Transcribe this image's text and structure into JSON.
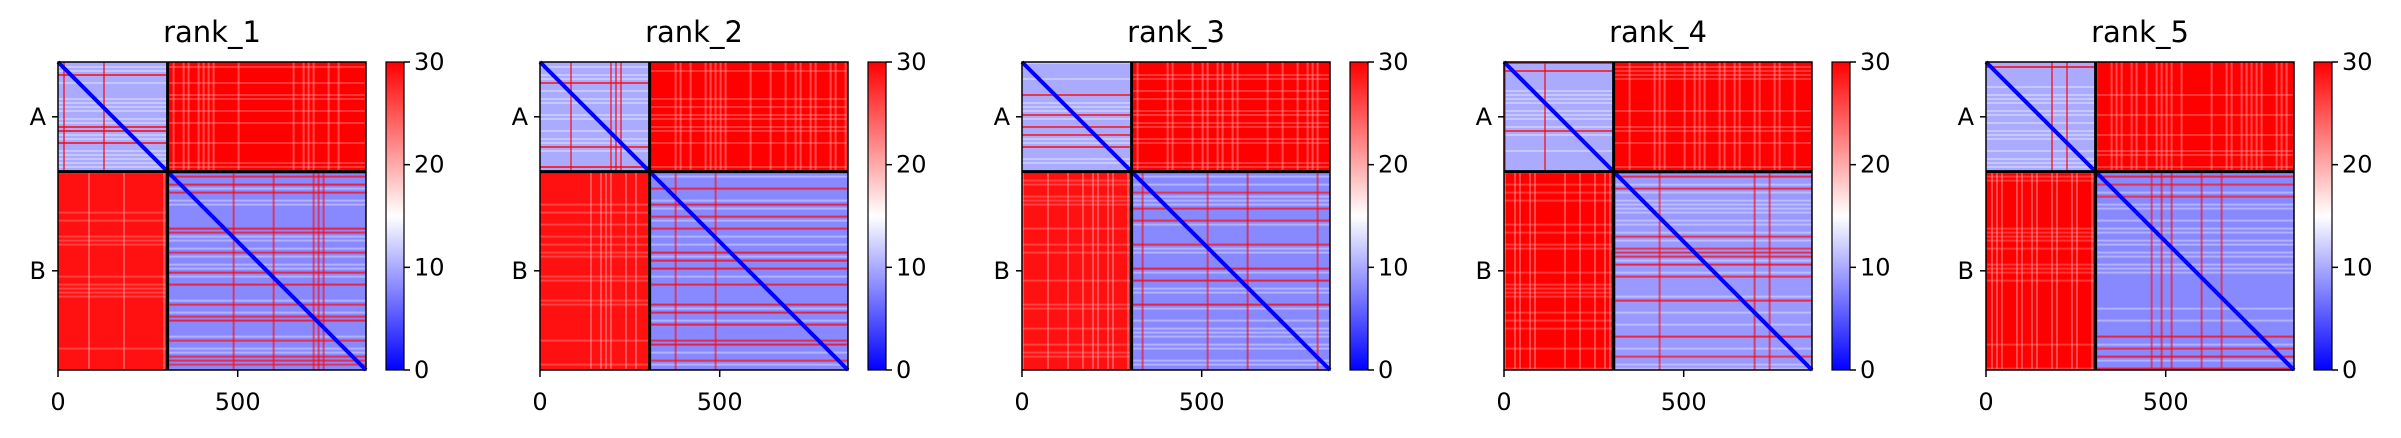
{
  "chart_data": [
    {
      "type": "heatmap",
      "title": "rank_1",
      "x_ticks": [
        0,
        500
      ],
      "y_tick_labels": [
        "A",
        "B"
      ],
      "chains": [
        {
          "name": "A",
          "start": 0,
          "end": 305
        },
        {
          "name": "B",
          "start": 305,
          "end": 857
        }
      ],
      "total_length": 857,
      "xlim": [
        0,
        857
      ],
      "colorbar": {
        "min": 0,
        "max": 30,
        "ticks": [
          0,
          10,
          20,
          30
        ],
        "colormap": "bwr"
      },
      "block_mean_values": {
        "A-A": 10,
        "A-B": 30,
        "B-A": 29,
        "B-B": 8
      },
      "grid": false
    },
    {
      "type": "heatmap",
      "title": "rank_2",
      "x_ticks": [
        0,
        500
      ],
      "y_tick_labels": [
        "A",
        "B"
      ],
      "chains": [
        {
          "name": "A",
          "start": 0,
          "end": 305
        },
        {
          "name": "B",
          "start": 305,
          "end": 857
        }
      ],
      "total_length": 857,
      "xlim": [
        0,
        857
      ],
      "colorbar": {
        "min": 0,
        "max": 30,
        "ticks": [
          0,
          10,
          20,
          30
        ],
        "colormap": "bwr"
      },
      "block_mean_values": {
        "A-A": 10,
        "A-B": 30,
        "B-A": 29,
        "B-B": 8
      },
      "grid": false
    },
    {
      "type": "heatmap",
      "title": "rank_3",
      "x_ticks": [
        0,
        500
      ],
      "y_tick_labels": [
        "A",
        "B"
      ],
      "chains": [
        {
          "name": "A",
          "start": 0,
          "end": 305
        },
        {
          "name": "B",
          "start": 305,
          "end": 857
        }
      ],
      "total_length": 857,
      "xlim": [
        0,
        857
      ],
      "colorbar": {
        "min": 0,
        "max": 30,
        "ticks": [
          0,
          10,
          20,
          30
        ],
        "colormap": "bwr"
      },
      "block_mean_values": {
        "A-A": 10,
        "A-B": 30,
        "B-A": 29,
        "B-B": 8
      },
      "grid": false
    },
    {
      "type": "heatmap",
      "title": "rank_4",
      "x_ticks": [
        0,
        500
      ],
      "y_tick_labels": [
        "A",
        "B"
      ],
      "chains": [
        {
          "name": "A",
          "start": 0,
          "end": 305
        },
        {
          "name": "B",
          "start": 305,
          "end": 857
        }
      ],
      "total_length": 857,
      "xlim": [
        0,
        857
      ],
      "colorbar": {
        "min": 0,
        "max": 30,
        "ticks": [
          0,
          10,
          20,
          30
        ],
        "colormap": "bwr"
      },
      "block_mean_values": {
        "A-A": 10,
        "A-B": 30,
        "B-A": 30,
        "B-B": 9
      },
      "grid": false
    },
    {
      "type": "heatmap",
      "title": "rank_5",
      "x_ticks": [
        0,
        500
      ],
      "y_tick_labels": [
        "A",
        "B"
      ],
      "chains": [
        {
          "name": "A",
          "start": 0,
          "end": 305
        },
        {
          "name": "B",
          "start": 305,
          "end": 857
        }
      ],
      "total_length": 857,
      "xlim": [
        0,
        857
      ],
      "colorbar": {
        "min": 0,
        "max": 30,
        "ticks": [
          0,
          10,
          20,
          30
        ],
        "colormap": "bwr"
      },
      "block_mean_values": {
        "A-A": 10,
        "A-B": 30,
        "B-A": 30,
        "B-B": 8
      },
      "grid": false
    }
  ]
}
